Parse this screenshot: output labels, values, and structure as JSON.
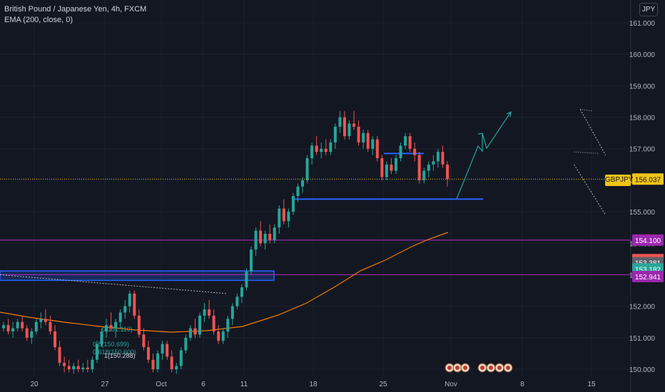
{
  "header": {
    "symbol_title": "British Pound / Japanese Yen, 4h, FXCM",
    "indicator": "EMA (200, close, 0)",
    "currency": "JPY"
  },
  "colors": {
    "background": "#131722",
    "grid": "#1e222d",
    "up": "#26a69a",
    "down": "#ef5350",
    "ema": "#f57c00",
    "purple": "#9c27b0",
    "support": "#2962ff",
    "current": "#f0c419",
    "trend": "#b2b5be",
    "projection": "#26a69a"
  },
  "chart_data": {
    "type": "candlestick",
    "symbol": "GBPJPY",
    "timeframe": "4h",
    "ylim": [
      149.85,
      161.5
    ],
    "y_ticks": [
      150.0,
      151.0,
      152.0,
      153.0,
      154.0,
      155.0,
      156.0,
      157.0,
      158.0,
      159.0,
      160.0,
      161.0
    ],
    "y_tick_labels": [
      "150.000",
      "151.000",
      "152.000",
      "153.000",
      "154.000",
      "155.000",
      "156.000",
      "157.000",
      "158.000",
      "159.000",
      "160.000",
      "161.000"
    ],
    "x_ticks": [
      "20",
      "27",
      "Oct",
      "6",
      "11",
      "18",
      "25",
      "Nov",
      "8",
      "15"
    ],
    "current_price": {
      "label": "GBPJPY",
      "value": "156.037",
      "price": 156.037
    },
    "price_badges": [
      {
        "value": "154.100",
        "price": 154.1,
        "color": "#9c27b0"
      },
      {
        "value": "153.481",
        "price": 153.481,
        "color": "#ef5350"
      },
      {
        "value": "153.381",
        "price": 153.381,
        "color": "#5d606b"
      },
      {
        "value": "153.182",
        "price": 153.182,
        "color": "#26a69a"
      },
      {
        "value": "152.941",
        "price": 152.941,
        "color": "#9c27b0"
      }
    ],
    "fib_labels": [
      "0(151.110)",
      "0.5(150.699)",
      "0.618(150.600)",
      "1(150.288)"
    ],
    "candles": [
      [
        151.3,
        151.5,
        151.2,
        151.4
      ],
      [
        151.4,
        151.6,
        151.1,
        151.2
      ],
      [
        151.2,
        151.5,
        151.0,
        151.3
      ],
      [
        151.3,
        151.6,
        151.2,
        151.5
      ],
      [
        151.5,
        151.7,
        151.2,
        151.3
      ],
      [
        151.3,
        151.4,
        150.9,
        151.0
      ],
      [
        151.0,
        151.3,
        150.8,
        151.2
      ],
      [
        151.2,
        151.6,
        151.1,
        151.5
      ],
      [
        151.5,
        151.8,
        151.3,
        151.6
      ],
      [
        151.6,
        151.9,
        151.4,
        151.5
      ],
      [
        151.5,
        151.7,
        151.1,
        151.2
      ],
      [
        151.2,
        151.4,
        150.6,
        150.7
      ],
      [
        150.7,
        150.9,
        150.1,
        150.2
      ],
      [
        150.2,
        150.4,
        149.9,
        150.1
      ],
      [
        150.1,
        150.3,
        149.9,
        150.0
      ],
      [
        150.0,
        150.2,
        149.85,
        150.1
      ],
      [
        150.1,
        150.3,
        149.9,
        150.0
      ],
      [
        150.0,
        150.2,
        149.9,
        150.05
      ],
      [
        150.05,
        150.3,
        149.9,
        150.0
      ],
      [
        150.0,
        150.4,
        149.9,
        150.3
      ],
      [
        150.3,
        150.9,
        150.2,
        150.8
      ],
      [
        150.8,
        151.3,
        150.7,
        151.2
      ],
      [
        151.2,
        151.6,
        151.0,
        151.4
      ],
      [
        151.4,
        151.8,
        151.2,
        151.3
      ],
      [
        151.3,
        151.6,
        151.0,
        151.5
      ],
      [
        151.5,
        151.9,
        151.3,
        151.8
      ],
      [
        151.8,
        152.2,
        151.6,
        152.0
      ],
      [
        152.0,
        152.5,
        151.8,
        152.4
      ],
      [
        152.4,
        152.5,
        151.6,
        151.7
      ],
      [
        151.7,
        151.9,
        151.0,
        151.1
      ],
      [
        151.1,
        151.3,
        150.6,
        150.7
      ],
      [
        150.7,
        150.9,
        150.2,
        150.3
      ],
      [
        150.3,
        150.5,
        149.9,
        150.0
      ],
      [
        150.0,
        150.6,
        149.9,
        150.5
      ],
      [
        150.5,
        150.9,
        150.3,
        150.8
      ],
      [
        150.8,
        150.9,
        150.3,
        150.4
      ],
      [
        150.4,
        150.6,
        149.9,
        150.0
      ],
      [
        150.0,
        150.2,
        149.85,
        150.1
      ],
      [
        150.1,
        150.7,
        150.0,
        150.6
      ],
      [
        150.6,
        151.1,
        150.5,
        151.0
      ],
      [
        151.0,
        151.4,
        150.9,
        151.3
      ],
      [
        151.3,
        151.6,
        151.0,
        151.1
      ],
      [
        151.1,
        151.8,
        151.0,
        151.7
      ],
      [
        151.7,
        152.1,
        151.5,
        151.9
      ],
      [
        151.9,
        152.2,
        151.6,
        151.7
      ],
      [
        151.7,
        151.9,
        151.1,
        151.2
      ],
      [
        151.2,
        151.4,
        150.8,
        150.9
      ],
      [
        150.9,
        151.3,
        150.8,
        151.2
      ],
      [
        151.2,
        151.7,
        151.0,
        151.6
      ],
      [
        151.6,
        152.1,
        151.4,
        152.0
      ],
      [
        152.0,
        152.4,
        151.9,
        152.3
      ],
      [
        152.3,
        152.7,
        152.1,
        152.6
      ],
      [
        152.6,
        153.2,
        152.5,
        153.1
      ],
      [
        153.1,
        153.9,
        153.0,
        153.8
      ],
      [
        153.8,
        154.5,
        153.6,
        154.4
      ],
      [
        154.4,
        154.7,
        153.9,
        154.0
      ],
      [
        154.0,
        154.4,
        153.8,
        154.3
      ],
      [
        154.3,
        154.6,
        154.0,
        154.1
      ],
      [
        154.1,
        154.6,
        154.0,
        154.5
      ],
      [
        154.5,
        155.2,
        154.3,
        155.1
      ],
      [
        155.1,
        155.4,
        154.6,
        154.7
      ],
      [
        154.7,
        155.1,
        154.5,
        155.0
      ],
      [
        155.0,
        155.6,
        154.9,
        155.5
      ],
      [
        155.5,
        155.9,
        155.3,
        155.8
      ],
      [
        155.8,
        156.1,
        155.6,
        156.0
      ],
      [
        156.0,
        156.8,
        155.9,
        156.7
      ],
      [
        156.7,
        157.2,
        156.5,
        157.1
      ],
      [
        157.1,
        157.4,
        156.8,
        156.9
      ],
      [
        156.9,
        157.2,
        156.7,
        157.0
      ],
      [
        157.0,
        157.3,
        156.8,
        156.9
      ],
      [
        156.9,
        157.3,
        156.8,
        157.2
      ],
      [
        157.2,
        157.8,
        157.0,
        157.7
      ],
      [
        157.7,
        158.2,
        157.5,
        158.0
      ],
      [
        158.0,
        158.2,
        157.3,
        157.4
      ],
      [
        157.4,
        157.9,
        157.3,
        157.8
      ],
      [
        157.8,
        158.2,
        157.6,
        157.7
      ],
      [
        157.7,
        157.9,
        157.1,
        157.2
      ],
      [
        157.2,
        157.6,
        157.0,
        157.5
      ],
      [
        157.5,
        157.6,
        156.9,
        157.0
      ],
      [
        157.0,
        157.4,
        156.8,
        157.3
      ],
      [
        157.3,
        157.4,
        156.6,
        156.7
      ],
      [
        156.7,
        156.8,
        156.0,
        156.1
      ],
      [
        156.1,
        156.6,
        156.0,
        156.5
      ],
      [
        156.5,
        156.7,
        156.2,
        156.3
      ],
      [
        156.3,
        156.8,
        156.2,
        156.7
      ],
      [
        156.7,
        157.2,
        156.6,
        157.1
      ],
      [
        157.1,
        157.5,
        157.0,
        157.4
      ],
      [
        157.4,
        157.5,
        156.9,
        157.0
      ],
      [
        157.0,
        157.2,
        156.6,
        156.8
      ],
      [
        156.8,
        156.9,
        155.9,
        156.0
      ],
      [
        156.0,
        156.4,
        155.9,
        156.3
      ],
      [
        156.3,
        156.6,
        156.1,
        156.5
      ],
      [
        156.5,
        156.8,
        156.3,
        156.6
      ],
      [
        156.6,
        157.0,
        156.4,
        156.9
      ],
      [
        156.9,
        157.1,
        156.4,
        156.5
      ],
      [
        156.5,
        156.6,
        155.8,
        156.037
      ]
    ],
    "ema_series": [
      [
        151.5,
        151.1
      ],
      [
        151.6,
        151.0
      ],
      [
        151.7,
        150.95
      ],
      [
        151.8,
        150.95
      ],
      [
        151.9,
        151.0
      ],
      [
        152.0,
        151.1
      ],
      [
        152.1,
        151.3
      ],
      [
        152.2,
        151.55
      ],
      [
        152.3,
        151.85
      ],
      [
        152.4,
        152.2
      ],
      [
        152.5,
        152.55
      ],
      [
        152.6,
        152.9
      ],
      [
        152.7,
        153.25
      ],
      [
        152.8,
        153.55
      ],
      [
        152.9,
        153.8
      ],
      [
        153.0,
        154.0
      ],
      [
        153.1,
        154.2
      ],
      [
        153.2,
        154.38
      ]
    ],
    "annotations": {
      "channel_upper": [
        [
          154.6,
          158.25
        ],
        [
          154.8,
          156.8
        ]
      ],
      "channel_lower": [
        [
          154.55,
          156.5
        ],
        [
          154.8,
          154.9
        ]
      ],
      "short_channel": [
        [
          154.6,
          158.25
        ],
        [
          154.7,
          158.2
        ]
      ],
      "mid_dotted": [
        [
          154.55,
          156.9
        ],
        [
          154.75,
          156.85
        ]
      ],
      "support_line": [
        [
          154.55,
          155.4
        ],
        [
          154.77,
          155.4
        ]
      ],
      "resistance_box": [
        [
          154.6,
          156.85
        ],
        [
          154.66,
          156.85
        ]
      ],
      "left_rect": [
        150.0,
        152.82,
        153.12
      ],
      "left_trend": [
        [
          150.0,
          153.0
        ],
        [
          151.8,
          152.4
        ]
      ],
      "purple_lines": [
        154.1,
        153.0
      ],
      "projection_path": [
        [
          154.7,
          155.4
        ],
        [
          154.76,
          157.2
        ],
        [
          154.78,
          157.1
        ],
        [
          154.79,
          157.5
        ],
        [
          154.8,
          157.0
        ],
        [
          154.84,
          158.2
        ]
      ]
    },
    "indicators": {
      "ema": "EMA (200, close, 0)"
    },
    "grid": true
  }
}
